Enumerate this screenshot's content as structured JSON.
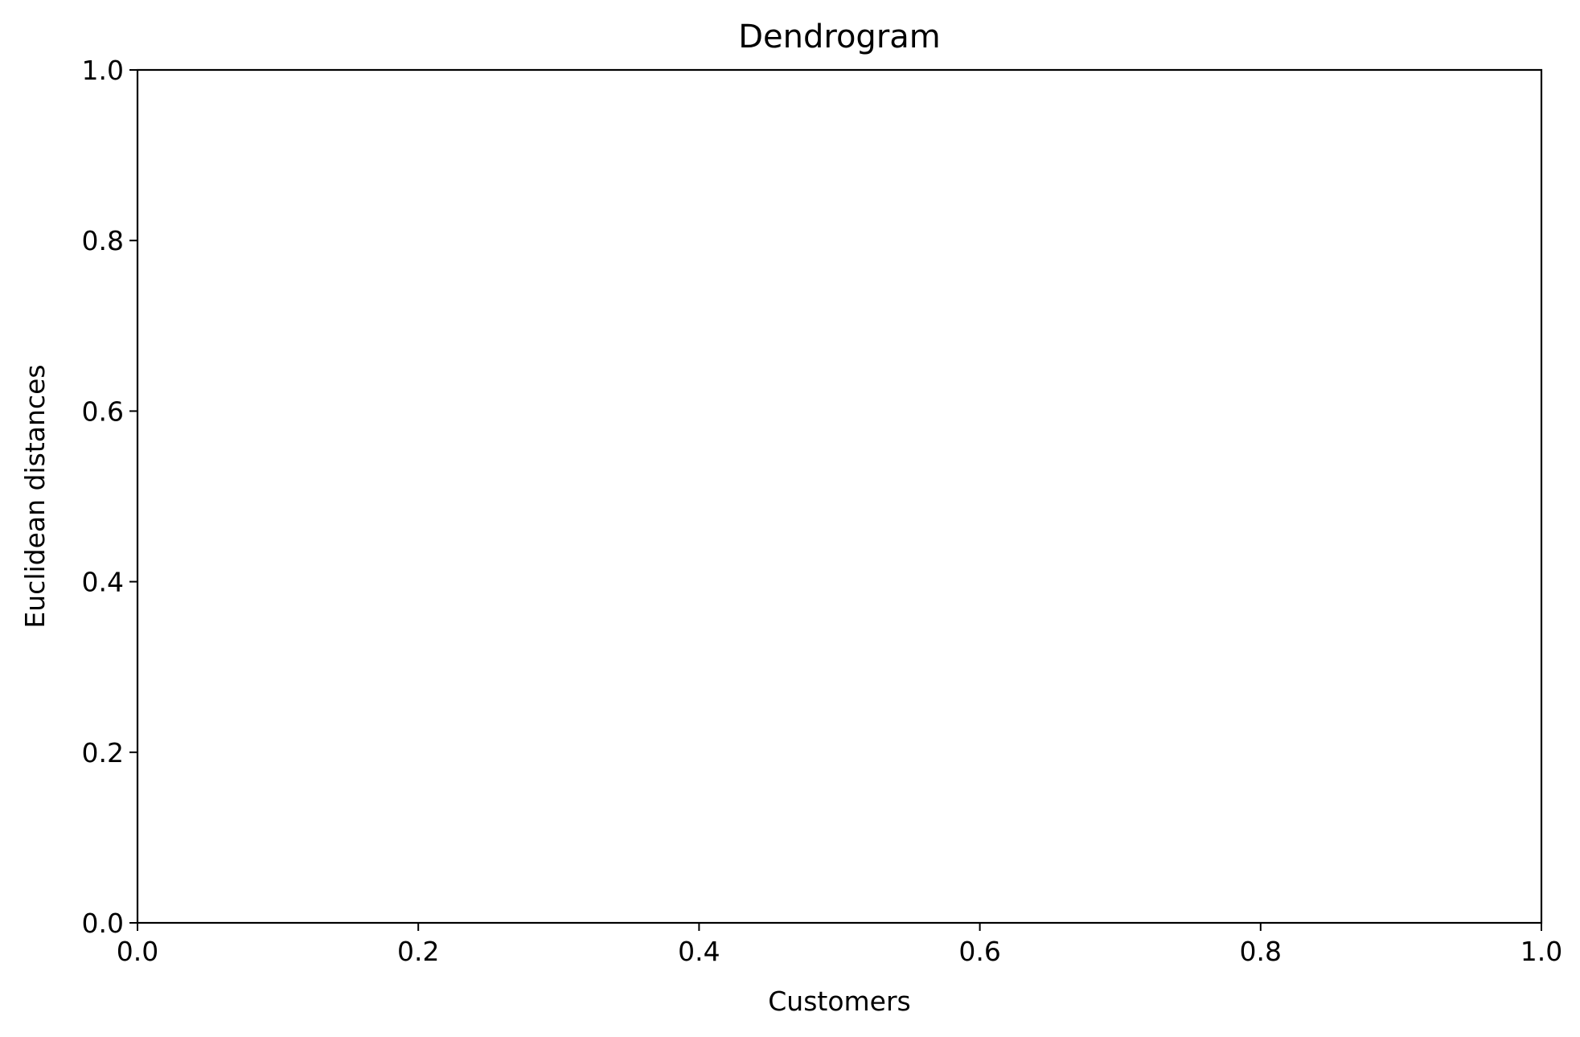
{
  "chart_data": {
    "type": "line",
    "title": "Dendrogram",
    "xlabel": "Customers",
    "ylabel": "Euclidean distances",
    "xlim": [
      0.0,
      1.0
    ],
    "ylim": [
      0.0,
      1.0
    ],
    "xticks": [
      0.0,
      0.2,
      0.4,
      0.6,
      0.8,
      1.0
    ],
    "yticks": [
      0.0,
      0.2,
      0.4,
      0.6,
      0.8,
      1.0
    ],
    "xtick_labels": [
      "0.0",
      "0.2",
      "0.4",
      "0.6",
      "0.8",
      "1.0"
    ],
    "ytick_labels": [
      "0.0",
      "0.2",
      "0.4",
      "0.6",
      "0.8",
      "1.0"
    ],
    "series": [],
    "grid": false,
    "legend": "none"
  },
  "colors": {
    "axes": "#000000",
    "background": "#ffffff"
  }
}
